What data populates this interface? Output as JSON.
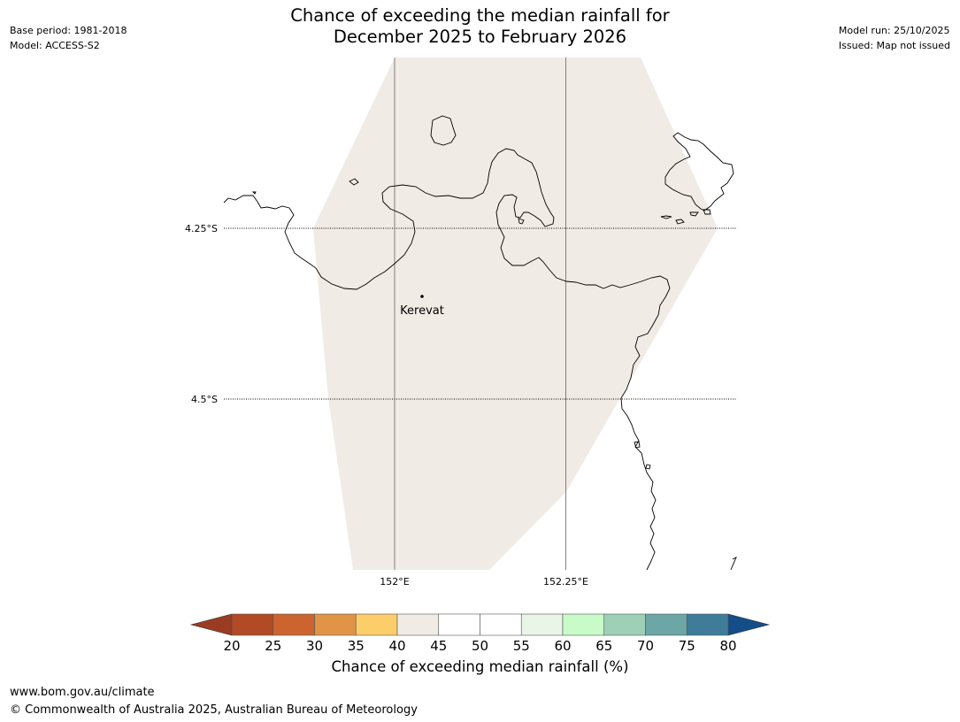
{
  "header": {
    "title_line1": "Chance of exceeding the median rainfall for",
    "title_line2": "December 2025 to February 2026",
    "base_period": "Base period: 1981-2018",
    "model": "Model: ACCESS-S2",
    "model_run": "Model run: 25/10/2025",
    "issued": "Issued: Map not issued"
  },
  "map": {
    "latitude_labels": [
      "4.25°S",
      "4.5°S"
    ],
    "longitude_labels": [
      "152°E",
      "152.25°E"
    ],
    "place": {
      "name": "Kerevat"
    },
    "forecast_fill_band": "40-45",
    "forecast_fill_color": "#f0ebe5",
    "coast_color": "#000000"
  },
  "colorbar": {
    "label": "Chance of exceeding median rainfall (%)",
    "ticks": [
      "20",
      "25",
      "30",
      "35",
      "40",
      "45",
      "50",
      "55",
      "60",
      "65",
      "70",
      "75",
      "80"
    ],
    "low_extend_color": "#9a3c22",
    "high_extend_color": "#134e88",
    "segments": [
      "#b24a26",
      "#cc6430",
      "#e29446",
      "#fdcd6a",
      "#f0ebe5",
      "#ffffff",
      "#ffffff",
      "#e9f5e6",
      "#c8fbc8",
      "#9ed0b8",
      "#6da6a6",
      "#3f7c9a"
    ]
  },
  "footer": {
    "url": "www.bom.gov.au/climate",
    "copyright": "© Commonwealth of Australia 2025, Australian Bureau of Meteorology"
  }
}
